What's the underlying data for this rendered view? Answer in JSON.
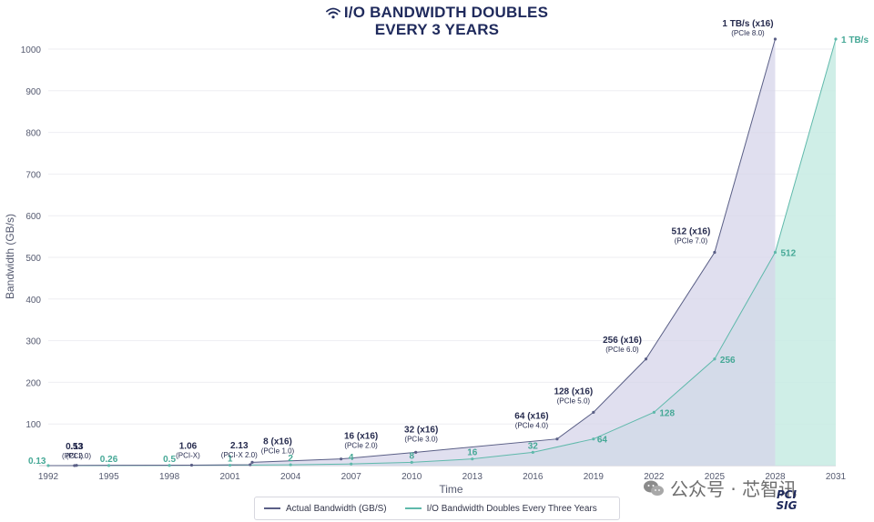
{
  "title_line1": "I/O BANDWIDTH DOUBLES",
  "title_line2": "EVERY 3 YEARS",
  "watermark_text": "公众号 · 芯智讯",
  "logo": {
    "line1": "PCI",
    "line2": "SIG"
  },
  "legend": [
    {
      "label": "Actual Bandwidth (GB/S)",
      "color": "#5a5f86"
    },
    {
      "label": "I/O Bandwidth Doubles Every Three Years",
      "color": "#5fb9ab"
    }
  ],
  "chart_data": {
    "type": "area",
    "title": "I/O BANDWIDTH DOUBLES EVERY 3 YEARS",
    "xlabel": "Time",
    "ylabel": "Bandwidth (GB/s)",
    "xlim": [
      1992,
      2031
    ],
    "ylim": [
      0,
      1024
    ],
    "x_ticks": [
      1992,
      1995,
      1998,
      2001,
      2004,
      2007,
      2010,
      2013,
      2016,
      2019,
      2022,
      2025,
      2028,
      2031
    ],
    "y_ticks": [
      100,
      200,
      300,
      400,
      500,
      600,
      700,
      800,
      900,
      1000
    ],
    "grid": true,
    "legend_position": "bottom-center",
    "series": [
      {
        "name": "Actual Bandwidth (GB/S)",
        "color": "#5a5f86",
        "fill": "#d5d4ea",
        "points": [
          {
            "x": 1992,
            "y": 0
          },
          {
            "x": 1993.3,
            "y": 0.13,
            "label": "0.13",
            "sublabel": "(PCI)"
          },
          {
            "x": 1993.4,
            "y": 0.53,
            "label": ".53",
            "sublabel": "(PCI 2.0)"
          },
          {
            "x": 1999.1,
            "y": 1.06,
            "label": "1.06",
            "sublabel": "(PCI-X)"
          },
          {
            "x": 2002,
            "y": 2.13,
            "label": "2.13",
            "sublabel": "(PCI-X 2.0)"
          },
          {
            "x": 2002.1,
            "y": 8,
            "label": "8 (x16)",
            "sublabel": "(PCIe 1.0)"
          },
          {
            "x": 2006.5,
            "y": 16,
            "label": "16 (x16)",
            "sublabel": "(PCIe 2.0)"
          },
          {
            "x": 2010.2,
            "y": 32,
            "label": "32 (x16)",
            "sublabel": "(PCIe 3.0)"
          },
          {
            "x": 2017.2,
            "y": 64,
            "label": "64 (x16)",
            "sublabel": "(PCIe 4.0)"
          },
          {
            "x": 2019,
            "y": 128,
            "label": "128 (x16)",
            "sublabel": "(PCIe 5.0)"
          },
          {
            "x": 2021.6,
            "y": 256,
            "label": "256 (x16)",
            "sublabel": "(PCIe 6.0)"
          },
          {
            "x": 2025,
            "y": 512,
            "label": "512 (x16)",
            "sublabel": "(PCIe 7.0)"
          },
          {
            "x": 2028,
            "y": 1024,
            "label": "1 TB/s (x16)",
            "sublabel": "(PCIe 8.0)"
          }
        ]
      },
      {
        "name": "I/O Bandwidth Doubles Every Three Years",
        "color": "#5fb9ab",
        "fill": "#c7ebe3",
        "points": [
          {
            "x": 1992,
            "y": 0.13,
            "label": "0.13"
          },
          {
            "x": 1995,
            "y": 0.26,
            "label": "0.26"
          },
          {
            "x": 1998,
            "y": 0.5,
            "label": "0.5"
          },
          {
            "x": 2001,
            "y": 1,
            "label": "1"
          },
          {
            "x": 2004,
            "y": 2,
            "label": "2"
          },
          {
            "x": 2007,
            "y": 4,
            "label": "4"
          },
          {
            "x": 2010,
            "y": 8,
            "label": "8"
          },
          {
            "x": 2013,
            "y": 16,
            "label": "16"
          },
          {
            "x": 2016,
            "y": 32,
            "label": "32"
          },
          {
            "x": 2019,
            "y": 64,
            "label": "64"
          },
          {
            "x": 2022,
            "y": 128,
            "label": "128"
          },
          {
            "x": 2025,
            "y": 256,
            "label": "256"
          },
          {
            "x": 2028,
            "y": 512,
            "label": "512"
          },
          {
            "x": 2031,
            "y": 1024,
            "label": "1 TB/s"
          }
        ]
      }
    ]
  }
}
